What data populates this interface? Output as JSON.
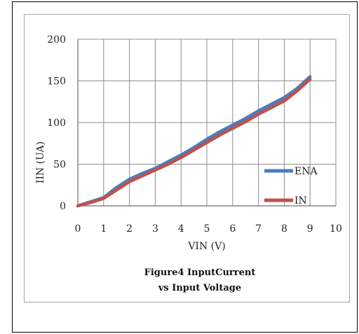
{
  "chart_data": {
    "type": "line",
    "title": "Figure4 InputCurrent vs Input Voltage",
    "caption_lines": [
      "Figure4 InputCurrent",
      "vs Input Voltage"
    ],
    "xlabel": "VIN (V)",
    "ylabel": "IIN  (UA)",
    "xlim": [
      0,
      10
    ],
    "ylim": [
      0,
      200
    ],
    "xticks": [
      "0",
      "1",
      "2",
      "3",
      "4",
      "5",
      "6",
      "7",
      "8",
      "9",
      "10"
    ],
    "yticks": [
      "0",
      "50",
      "100",
      "150",
      "200"
    ],
    "grid": true,
    "legend_position": "right",
    "series": [
      {
        "name": "ENA",
        "color": "#4a7ebb",
        "x": [
          0,
          0.5,
          1,
          1.5,
          2,
          2.5,
          3,
          3.5,
          4,
          4.5,
          5,
          5.5,
          6,
          6.5,
          7,
          7.5,
          8,
          8.5,
          9
        ],
        "y": [
          0,
          5,
          10,
          22,
          32,
          39,
          45,
          53,
          61,
          70,
          80,
          89,
          97,
          105,
          114,
          122,
          130,
          141,
          155
        ]
      },
      {
        "name": "IN",
        "color": "#c0504d",
        "x": [
          0,
          0.5,
          1,
          1.5,
          2,
          2.5,
          3,
          3.5,
          4,
          4.5,
          5,
          5.5,
          6,
          6.5,
          7,
          7.5,
          8,
          8.5,
          9
        ],
        "y": [
          0,
          4,
          9,
          19,
          29,
          36,
          43,
          50,
          58,
          67,
          76,
          85,
          93,
          101,
          110,
          118,
          126,
          138,
          152
        ]
      }
    ]
  }
}
